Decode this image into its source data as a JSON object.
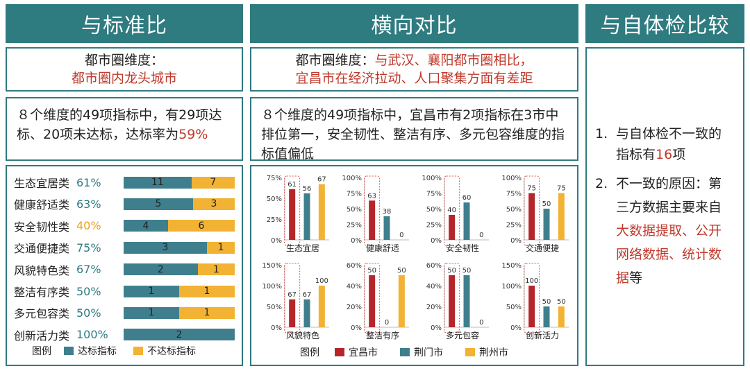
{
  "headers": {
    "left": "与标准比",
    "middle": "横向对比",
    "right": "与自体检比较"
  },
  "left": {
    "dim_label": "都市圈维度：",
    "dim_value": "都市圈内龙头城市",
    "summary_prefix": "８个维度的49项指标中，有29项达标、20项未达标，达标率为",
    "summary_rate": "59%",
    "legend_title": "图例",
    "legend_met": "达标指标",
    "legend_unmet": "不达标指标",
    "colors": {
      "met": "#3f7f8d",
      "unmet": "#f2b233"
    }
  },
  "middle": {
    "dim_label": "都市圈维度：",
    "dim_line1": "与武汉、襄阳都市圈相比，",
    "dim_line2": "宜昌市在经济拉动、人口聚集方面有差距",
    "summary": "８个维度的49项指标中，宜昌市有2项指标在3市中排位第一，安全韧性、整洁有序、多元包容维度的指标值偏低",
    "legend_title": "图例",
    "colors": {
      "宜昌市": "#b5262b",
      "荆门市": "#3f7f8d",
      "荆州市": "#f2b233"
    }
  },
  "right": {
    "item1_num": "1.",
    "item1_a": "与自体检不一致的",
    "item1_b": "指标有",
    "item1_count": "16",
    "item1_c": "项",
    "item2_num": "2.",
    "item2_a": "不一致的原因：第",
    "item2_b": "三方数据主要来自",
    "item2_red1": "大数据提取、公开",
    "item2_red2": "网络数据、统计数",
    "item2_red3": "据",
    "item2_end": "等"
  },
  "chart_data": [
    {
      "type": "bar",
      "orientation": "horizontal-stacked",
      "categories": [
        "生态宜居类",
        "健康舒适类",
        "安全韧性类",
        "交通便捷类",
        "风貌特色类",
        "整洁有序类",
        "多元包容类",
        "创新活力类"
      ],
      "rates": [
        "61%",
        "63%",
        "40%",
        "75%",
        "67%",
        "50%",
        "50%",
        "100%"
      ],
      "rate_colors": [
        "teal",
        "teal",
        "orange",
        "teal",
        "teal",
        "teal",
        "teal",
        "teal"
      ],
      "series": [
        {
          "name": "达标指标",
          "values": [
            11,
            5,
            4,
            3,
            2,
            1,
            1,
            2
          ]
        },
        {
          "name": "不达标指标",
          "values": [
            7,
            3,
            6,
            1,
            1,
            1,
            1,
            0
          ]
        }
      ]
    },
    {
      "type": "bar",
      "grouped": true,
      "series_names": [
        "宜昌市",
        "荆门市",
        "荆州市"
      ],
      "charts": [
        {
          "title": "生态宜居",
          "values": [
            61,
            56,
            67
          ],
          "ylim": [
            0,
            75
          ],
          "ticks": [
            "75%",
            "50%",
            "25%",
            "0%"
          ]
        },
        {
          "title": "健康舒适",
          "values": [
            63,
            38,
            0
          ],
          "ylim": [
            0,
            100
          ],
          "ticks": [
            "100%",
            "75%",
            "50%",
            "25%",
            "0%"
          ]
        },
        {
          "title": "安全韧性",
          "values": [
            40,
            60,
            0
          ],
          "ylim": [
            0,
            100
          ],
          "ticks": [
            "100%",
            "75%",
            "50%",
            "25%",
            "0%"
          ]
        },
        {
          "title": "交通便捷",
          "values": [
            75,
            50,
            75
          ],
          "ylim": [
            0,
            100
          ],
          "ticks": [
            "100%",
            "75%",
            "50%",
            "25%",
            "0%"
          ]
        },
        {
          "title": "风貌特色",
          "values": [
            67,
            67,
            100
          ],
          "ylim": [
            0,
            150
          ],
          "ticks": [
            "150%",
            "100%",
            "50%",
            "0%"
          ]
        },
        {
          "title": "整洁有序",
          "values": [
            50,
            0,
            50
          ],
          "ylim": [
            0,
            60
          ],
          "ticks": [
            "60%",
            "40%",
            "20%",
            "0%"
          ]
        },
        {
          "title": "多元包容",
          "values": [
            50,
            50,
            0
          ],
          "ylim": [
            0,
            60
          ],
          "ticks": [
            "60%",
            "40%",
            "20%",
            "0%"
          ]
        },
        {
          "title": "创新活力",
          "values": [
            100,
            50,
            50
          ],
          "ylim": [
            0,
            150
          ],
          "ticks": [
            "150%",
            "100%",
            "50%",
            "0%"
          ]
        }
      ]
    }
  ]
}
